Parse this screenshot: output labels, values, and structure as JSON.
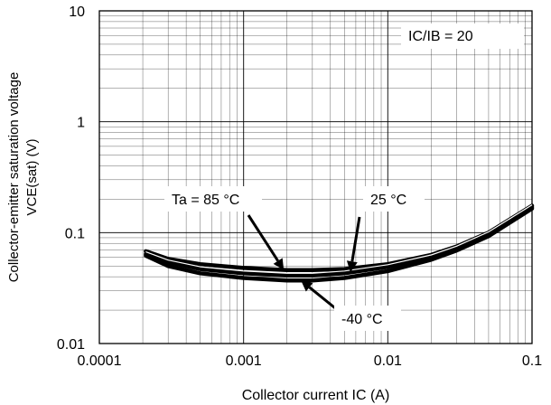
{
  "chart_data": {
    "type": "line",
    "title": "",
    "xlabel": "Collector current IC (A)",
    "ylabel_lines": [
      "Collector-emitter saturation voltage",
      "VCE(sat) (V)"
    ],
    "x_scale": "log",
    "y_scale": "log",
    "xlim": [
      0.0001,
      0.1
    ],
    "ylim": [
      0.01,
      10
    ],
    "x_ticks": [
      {
        "value": 0.0001,
        "label": "0.0001"
      },
      {
        "value": 0.001,
        "label": "0.001"
      },
      {
        "value": 0.01,
        "label": "0.01"
      },
      {
        "value": 0.1,
        "label": "0.1"
      }
    ],
    "y_ticks": [
      {
        "value": 0.01,
        "label": "0.01"
      },
      {
        "value": 0.1,
        "label": "0.1"
      },
      {
        "value": 1,
        "label": "1"
      },
      {
        "value": 10,
        "label": "10"
      }
    ],
    "grid": true,
    "condition_label": "IC/IB = 20",
    "series": [
      {
        "name": "Ta = 85 °C",
        "color": "#000000",
        "x": [
          0.00021,
          0.0003,
          0.0005,
          0.001,
          0.002,
          0.003,
          0.005,
          0.01,
          0.02,
          0.03,
          0.05,
          0.1
        ],
        "y": [
          0.068,
          0.058,
          0.052,
          0.048,
          0.046,
          0.046,
          0.047,
          0.052,
          0.063,
          0.075,
          0.1,
          0.175
        ]
      },
      {
        "name": "25 °C",
        "color": "#000000",
        "x": [
          0.00021,
          0.0003,
          0.0005,
          0.001,
          0.002,
          0.003,
          0.005,
          0.01,
          0.02,
          0.03,
          0.05,
          0.1
        ],
        "y": [
          0.064,
          0.054,
          0.047,
          0.043,
          0.041,
          0.041,
          0.043,
          0.049,
          0.06,
          0.072,
          0.097,
          0.17
        ]
      },
      {
        "name": "-40 °C",
        "color": "#000000",
        "x": [
          0.00021,
          0.0003,
          0.0005,
          0.001,
          0.002,
          0.003,
          0.005,
          0.01,
          0.02,
          0.03,
          0.05,
          0.1
        ],
        "y": [
          0.062,
          0.05,
          0.043,
          0.039,
          0.037,
          0.037,
          0.039,
          0.045,
          0.057,
          0.069,
          0.093,
          0.165
        ]
      }
    ],
    "annotations": [
      {
        "label": "Ta = 85 °C",
        "points_to": {
          "x": 0.0019,
          "y": 0.046
        }
      },
      {
        "label": "25 °C",
        "points_to": {
          "x": 0.0055,
          "y": 0.044
        }
      },
      {
        "label": "-40 °C",
        "points_to": {
          "x": 0.0025,
          "y": 0.037
        }
      }
    ]
  }
}
